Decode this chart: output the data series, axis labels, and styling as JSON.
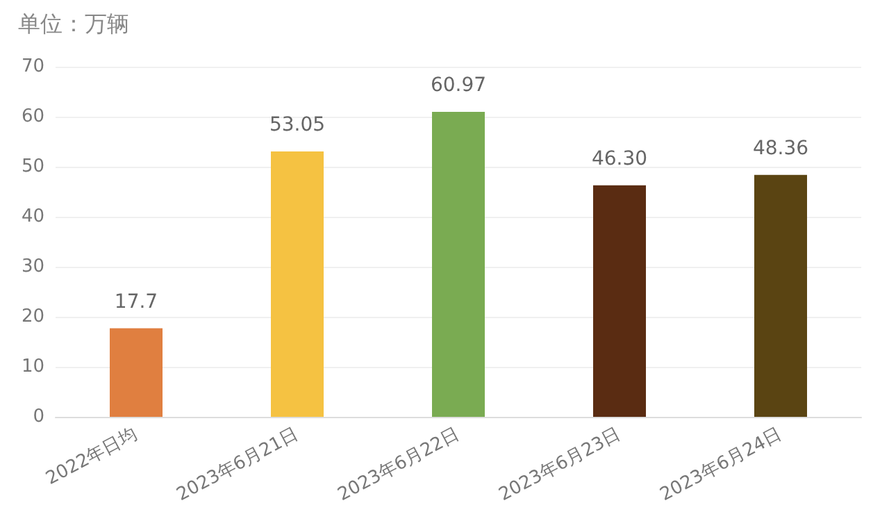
{
  "chart_data": {
    "type": "bar",
    "title": "单位：万辆",
    "categories": [
      "2022年日均",
      "2023年6月21日",
      "2023年6月22日",
      "2023年6月23日",
      "2023年6月24日"
    ],
    "values": [
      17.7,
      53.05,
      60.97,
      46.3,
      48.36
    ],
    "value_labels": [
      "17.7",
      "53.05",
      "60.97",
      "46.30",
      "48.36"
    ],
    "colors": [
      "#e07f40",
      "#f5c242",
      "#7aab52",
      "#5a2c12",
      "#5a4412"
    ],
    "ylim": [
      0,
      70
    ],
    "yticks": [
      0,
      10,
      20,
      30,
      40,
      50,
      60,
      70
    ],
    "grid": "y"
  }
}
